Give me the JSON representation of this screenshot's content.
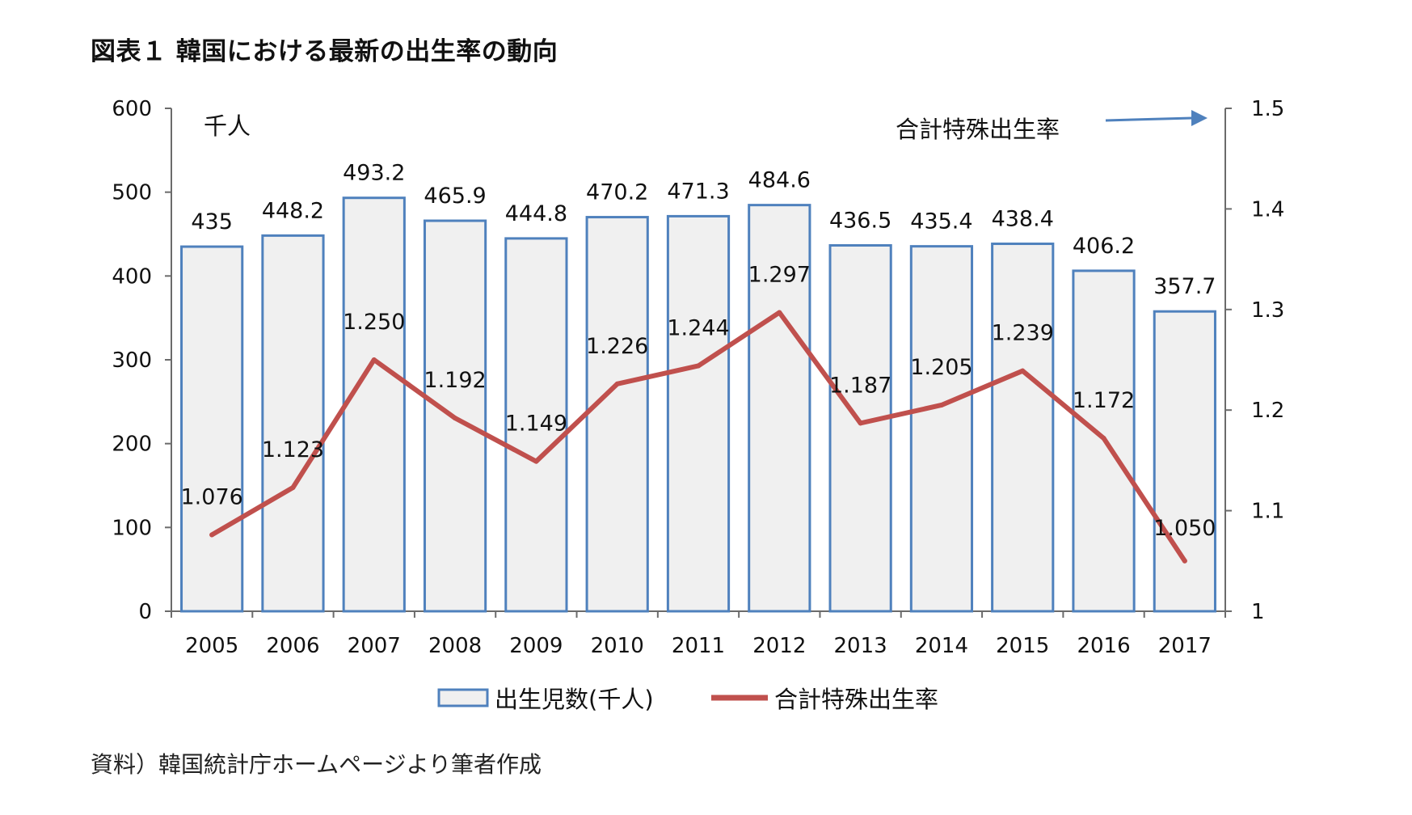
{
  "title": "図表１ 韓国における最新の出生率の動向",
  "source_note": "資料）韓国統計庁ホームページより筆者作成",
  "chart_data": {
    "type": "bar",
    "categories": [
      "2005",
      "2006",
      "2007",
      "2008",
      "2009",
      "2010",
      "2011",
      "2012",
      "2013",
      "2014",
      "2015",
      "2016",
      "2017"
    ],
    "series": [
      {
        "name": "出生児数(千人)",
        "type": "bar",
        "axis": "left",
        "values": [
          435,
          448.2,
          493.2,
          465.9,
          444.8,
          470.2,
          471.3,
          484.6,
          436.5,
          435.4,
          438.4,
          406.2,
          357.7
        ],
        "labels": [
          "435",
          "448.2",
          "493.2",
          "465.9",
          "444.8",
          "470.2",
          "471.3",
          "484.6",
          "436.5",
          "435.4",
          "438.4",
          "406.2",
          "357.7"
        ],
        "fill": "#f0f0f0",
        "stroke": "#4f81bd"
      },
      {
        "name": "合計特殊出生率",
        "type": "line",
        "axis": "right",
        "values": [
          1.076,
          1.123,
          1.25,
          1.192,
          1.149,
          1.226,
          1.244,
          1.297,
          1.187,
          1.205,
          1.239,
          1.172,
          1.05
        ],
        "labels": [
          "1.076",
          "1.123",
          "1.250",
          "1.192",
          "1.149",
          "1.226",
          "1.244",
          "1.297",
          "1.187",
          "1.205",
          "1.239",
          "1.172",
          "1.050"
        ],
        "color": "#c0504d"
      }
    ],
    "y_left": {
      "min": 0,
      "max": 600,
      "ticks": [
        "0",
        "100",
        "200",
        "300",
        "400",
        "500",
        "600"
      ],
      "unit": "千人"
    },
    "y_right": {
      "min": 1,
      "max": 1.5,
      "ticks": [
        "1",
        "1.1",
        "1.2",
        "1.3",
        "1.4",
        "1.5"
      ],
      "label": "合計特殊出生率"
    },
    "legend_position": "bottom",
    "grid": false,
    "arrow_color": "#4f81bd"
  }
}
